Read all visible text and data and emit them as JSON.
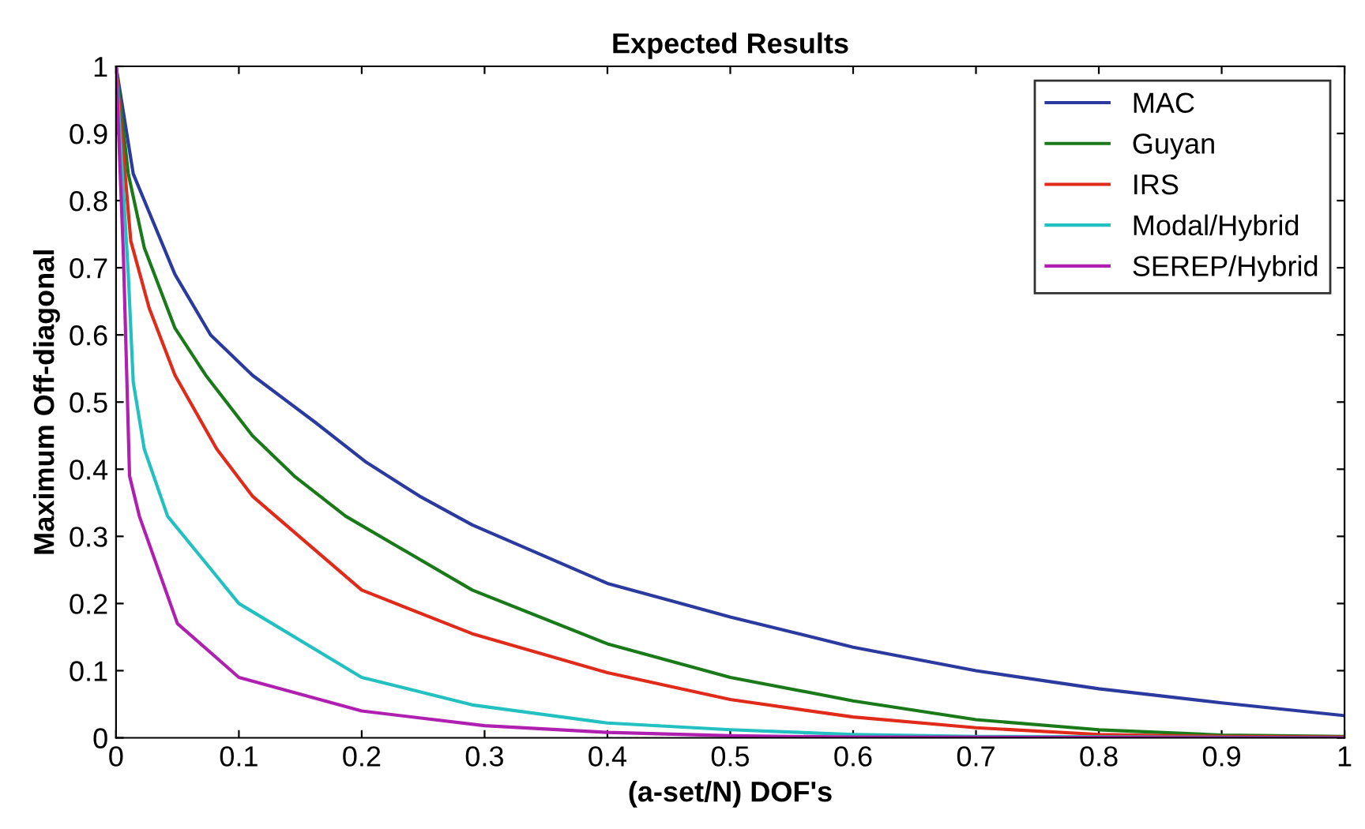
{
  "chart_data": {
    "type": "line",
    "title": "Expected Results",
    "xlabel": "(a-set/N) DOF's",
    "ylabel": "Maximum Off-diagonal",
    "xlim": [
      0,
      1
    ],
    "ylim": [
      0,
      1
    ],
    "xticks": [
      0,
      0.1,
      0.2,
      0.3,
      0.4,
      0.5,
      0.6,
      0.7,
      0.8,
      0.9,
      1
    ],
    "yticks": [
      0,
      0.1,
      0.2,
      0.3,
      0.4,
      0.5,
      0.6,
      0.7,
      0.8,
      0.9,
      1
    ],
    "grid": false,
    "legend": "top right",
    "marker": "none",
    "line_style": "solid",
    "series": [
      {
        "name": "MAC",
        "color": "#2b3a9e",
        "x": [
          0,
          0.014,
          0.048,
          0.077,
          0.111,
          0.162,
          0.204,
          0.247,
          0.29,
          0.4,
          0.5,
          0.6,
          0.7,
          0.8,
          0.9,
          1
        ],
        "values": [
          1,
          0.84,
          0.69,
          0.6,
          0.54,
          0.47,
          0.41,
          0.36,
          0.317,
          0.23,
          0.18,
          0.135,
          0.1,
          0.073,
          0.052,
          0.033
        ]
      },
      {
        "name": "Guyan",
        "color": "#1a7a1a",
        "x": [
          0,
          0.01,
          0.023,
          0.048,
          0.073,
          0.111,
          0.145,
          0.187,
          0.29,
          0.4,
          0.5,
          0.6,
          0.7,
          0.8,
          0.9,
          1
        ],
        "values": [
          1,
          0.84,
          0.73,
          0.61,
          0.54,
          0.45,
          0.39,
          0.33,
          0.22,
          0.14,
          0.09,
          0.055,
          0.027,
          0.012,
          0.004,
          0.002
        ]
      },
      {
        "name": "IRS",
        "color": "#e02a1a",
        "x": [
          0,
          0.012,
          0.027,
          0.048,
          0.082,
          0.111,
          0.13,
          0.2,
          0.29,
          0.4,
          0.5,
          0.6,
          0.7,
          0.8,
          0.9,
          1
        ],
        "values": [
          1,
          0.74,
          0.64,
          0.54,
          0.43,
          0.36,
          0.33,
          0.22,
          0.155,
          0.097,
          0.057,
          0.031,
          0.015,
          0.005,
          0.002,
          0.001
        ]
      },
      {
        "name": "Modal/Hybrid",
        "color": "#22c0c0",
        "x": [
          0,
          0.01,
          0.014,
          0.023,
          0.042,
          0.1,
          0.2,
          0.29,
          0.4,
          0.5,
          0.6,
          0.7,
          1
        ],
        "values": [
          1,
          0.69,
          0.53,
          0.43,
          0.33,
          0.2,
          0.09,
          0.049,
          0.022,
          0.012,
          0.005,
          0.002,
          0
        ]
      },
      {
        "name": "SEREP/Hybrid",
        "color": "#b020b0",
        "x": [
          0,
          0.006,
          0.011,
          0.019,
          0.05,
          0.1,
          0.2,
          0.3,
          0.4,
          0.5,
          0.6,
          1
        ],
        "values": [
          1,
          0.72,
          0.39,
          0.33,
          0.17,
          0.09,
          0.04,
          0.018,
          0.008,
          0.003,
          0.001,
          0
        ]
      }
    ]
  }
}
